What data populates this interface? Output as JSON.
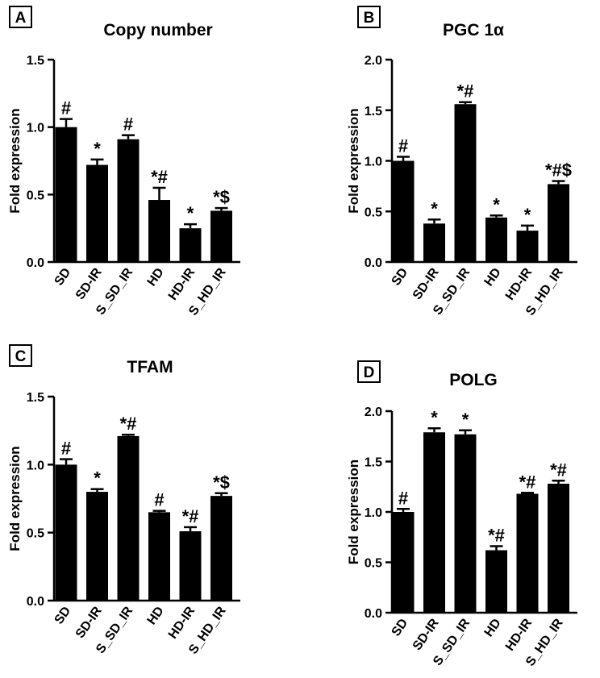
{
  "chart_data": [
    {
      "type": "bar",
      "panel_letter": "A",
      "title": "Copy number",
      "ylabel": "Fold expression",
      "xlabel": "",
      "ylim": [
        0,
        1.5
      ],
      "yticks": [
        "0.0",
        "0.5",
        "1.0",
        "1.5"
      ],
      "categories": [
        "SD",
        "SD-IR",
        "S_SD_IR",
        "HD",
        "HD-IR",
        "S_HD_IR"
      ],
      "values": [
        1.0,
        0.72,
        0.91,
        0.46,
        0.25,
        0.38
      ],
      "errors": [
        0.06,
        0.04,
        0.03,
        0.09,
        0.03,
        0.02
      ],
      "annotations": [
        "#",
        "*",
        "#",
        "*#",
        "*",
        "*$"
      ]
    },
    {
      "type": "bar",
      "panel_letter": "B",
      "title": "PGC 1α",
      "ylabel": "Fold expression",
      "xlabel": "",
      "ylim": [
        0,
        2.0
      ],
      "yticks": [
        "0.0",
        "0.5",
        "1.0",
        "1.5",
        "2.0"
      ],
      "categories": [
        "SD",
        "SD-IR",
        "S_SD_IR",
        "HD",
        "HD-IR",
        "S_HD_IR"
      ],
      "values": [
        1.0,
        0.38,
        1.56,
        0.44,
        0.31,
        0.77
      ],
      "errors": [
        0.04,
        0.04,
        0.02,
        0.02,
        0.05,
        0.03
      ],
      "annotations": [
        "#",
        "*",
        "*#",
        "*",
        "*",
        "*#$"
      ]
    },
    {
      "type": "bar",
      "panel_letter": "C",
      "title": "TFAM",
      "ylabel": "Fold expression",
      "xlabel": "",
      "ylim": [
        0,
        1.5
      ],
      "yticks": [
        "0.0",
        "0.5",
        "1.0",
        "1.5"
      ],
      "categories": [
        "SD",
        "SD-IR",
        "S_SD_IR",
        "HD",
        "HD-IR",
        "S_HD_IR"
      ],
      "values": [
        1.0,
        0.8,
        1.21,
        0.65,
        0.51,
        0.77
      ],
      "errors": [
        0.04,
        0.02,
        0.01,
        0.01,
        0.03,
        0.02
      ],
      "annotations": [
        "#",
        "*",
        "*#",
        "#",
        "*#",
        "*$"
      ]
    },
    {
      "type": "bar",
      "panel_letter": "D",
      "title": "POLG",
      "ylabel": "Fold expression",
      "xlabel": "",
      "ylim": [
        0,
        2.0
      ],
      "yticks": [
        "0.0",
        "0.5",
        "1.0",
        "1.5",
        "2.0"
      ],
      "categories": [
        "SD",
        "SD-IR",
        "S_SD_IR",
        "HD",
        "HD-IR",
        "S_HD_IR"
      ],
      "values": [
        1.0,
        1.79,
        1.77,
        0.62,
        1.18,
        1.28
      ],
      "errors": [
        0.03,
        0.04,
        0.04,
        0.04,
        0.01,
        0.03
      ],
      "annotations": [
        "#",
        "*",
        "*",
        "*#",
        "*#",
        "*#"
      ]
    }
  ]
}
